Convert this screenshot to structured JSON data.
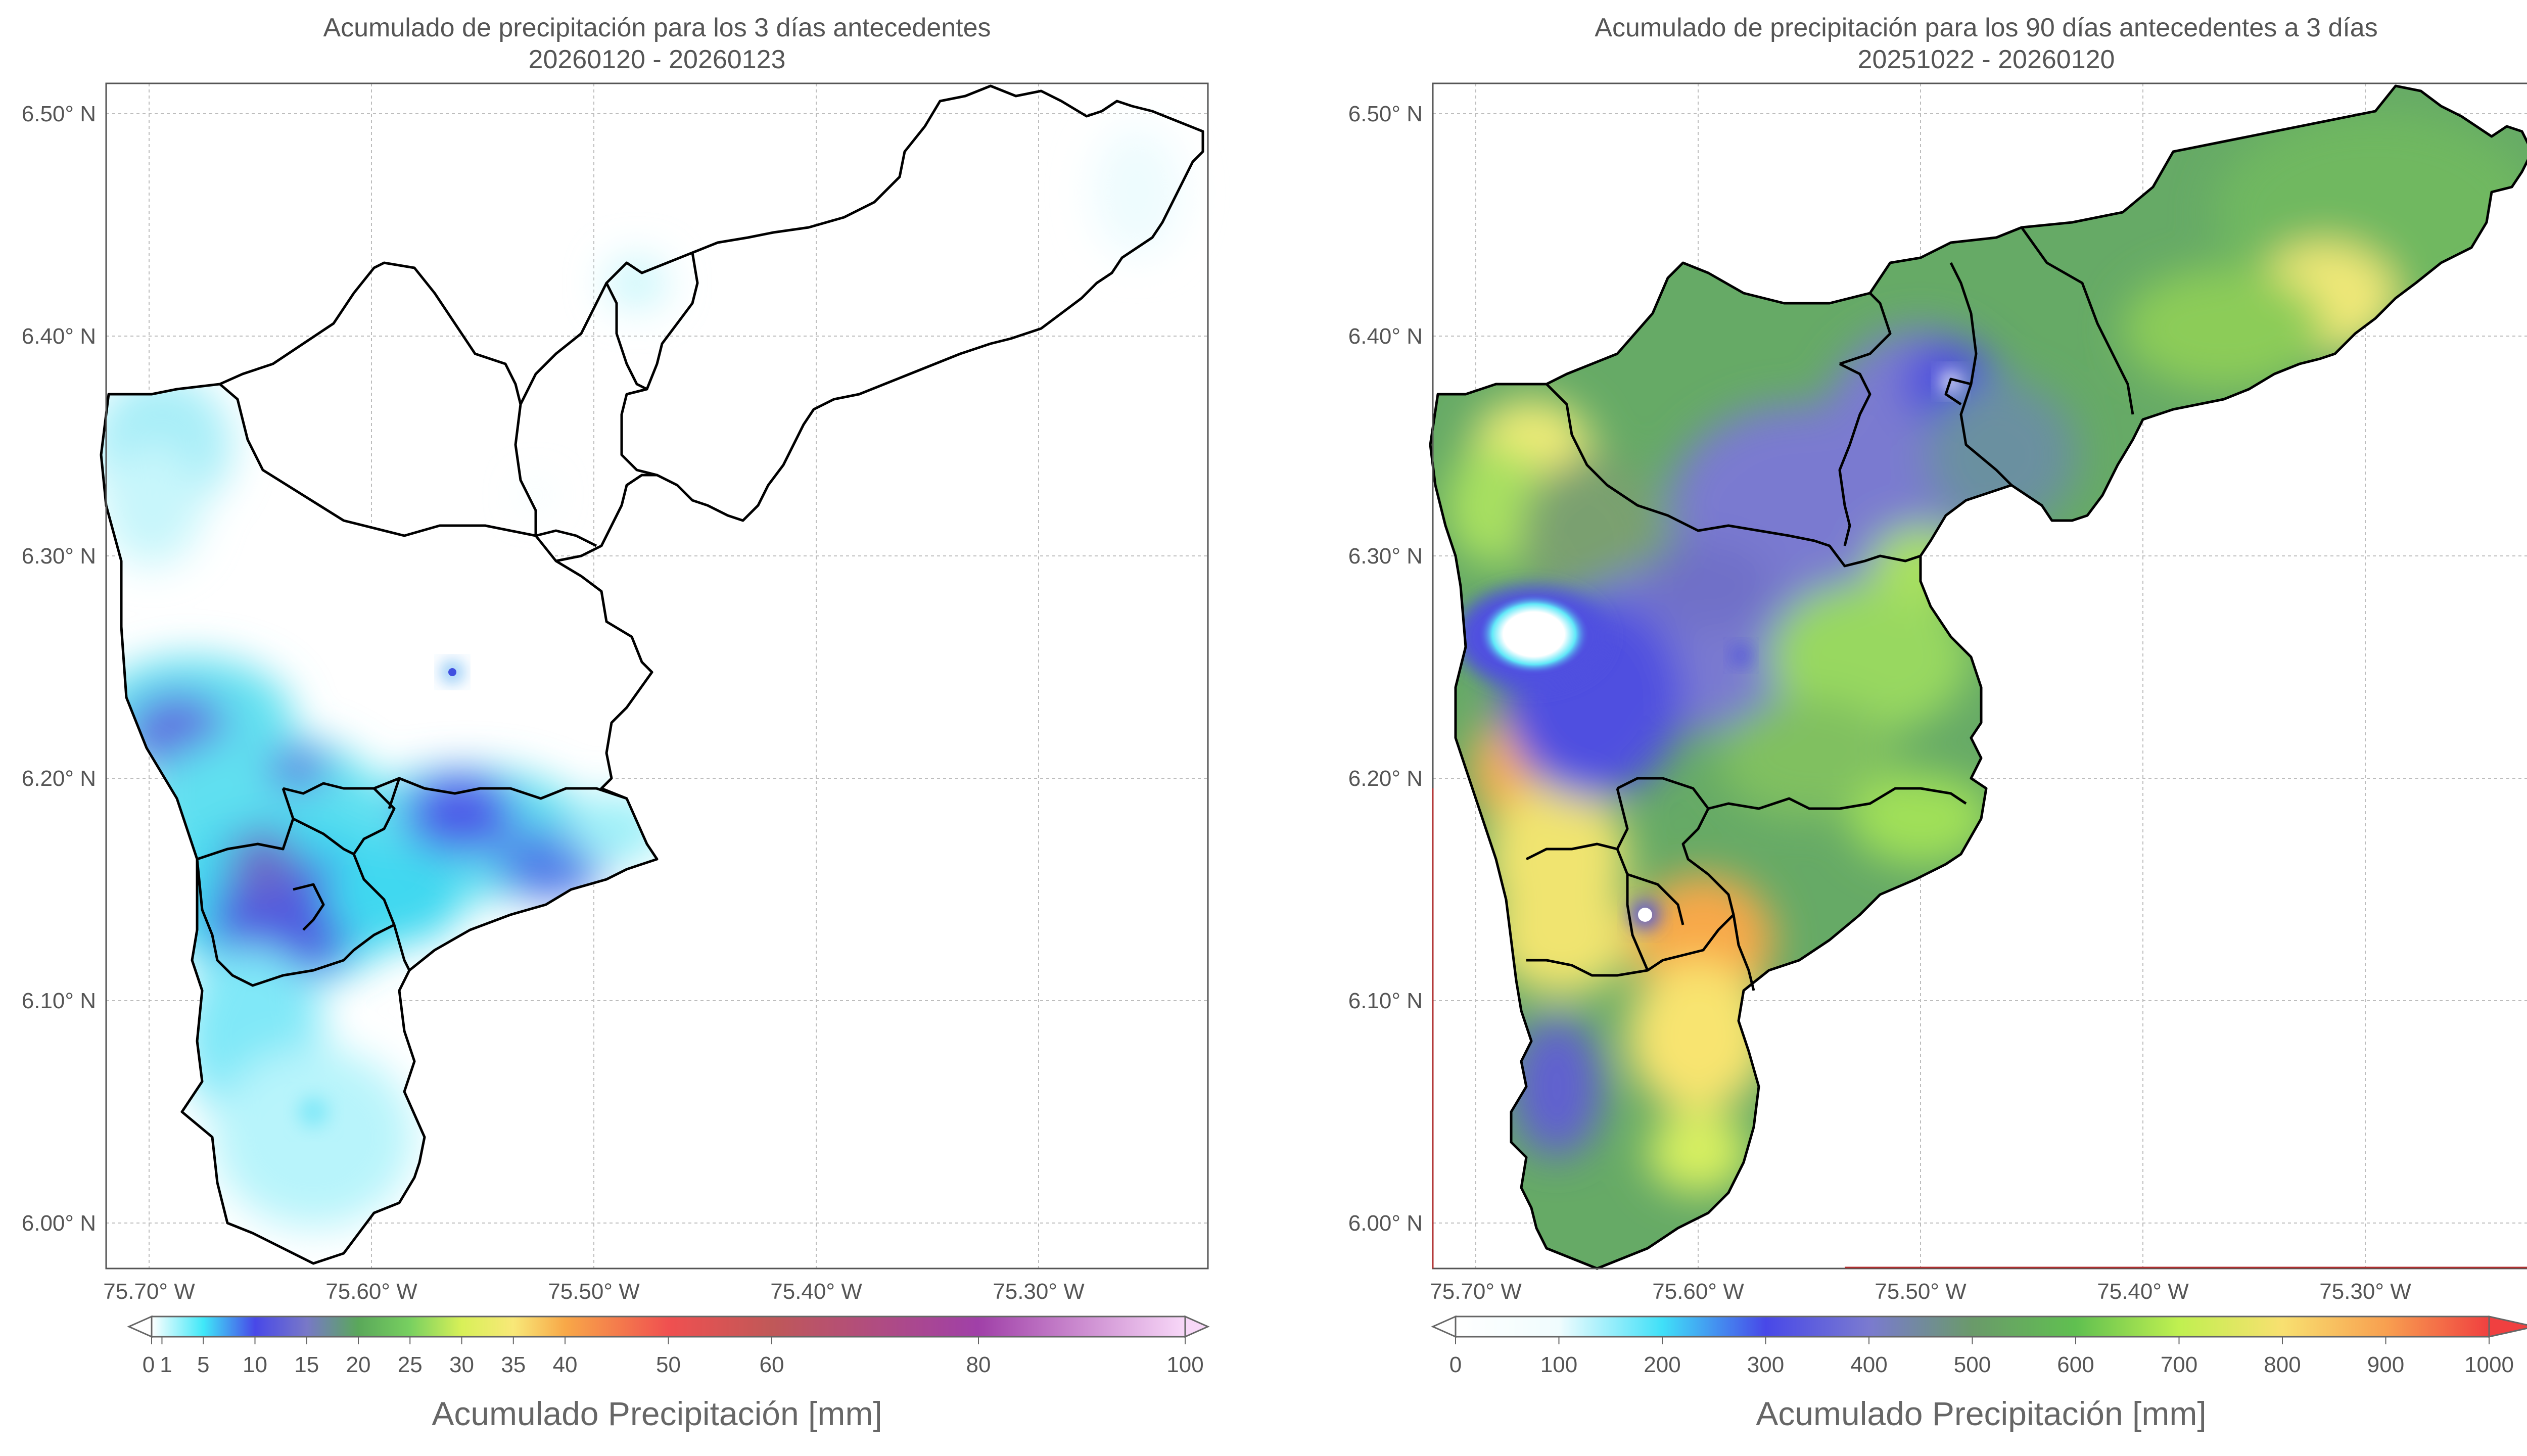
{
  "panels": [
    {
      "id": "left",
      "title_line1": "Acumulado de precipitación para los 3 días antecedentes",
      "title_line2": "20260120 - 20260123",
      "lat_ticks": [
        "6.50° N",
        "6.40° N",
        "6.30° N",
        "6.20° N",
        "6.10° N",
        "6.00° N"
      ],
      "lon_ticks": [
        "75.70° W",
        "75.60° W",
        "75.50° W",
        "75.40° W",
        "75.30° W"
      ],
      "colorbar": {
        "label": "Acumulado Precipitación [mm]",
        "tick_labels": [
          "0",
          "1",
          "5",
          "10",
          "15",
          "20",
          "25",
          "30",
          "35",
          "40",
          "50",
          "60",
          "80",
          "100"
        ],
        "min": 0,
        "max": 100,
        "colors": [
          "#ffffff",
          "#bff6fb",
          "#40e0f0",
          "#4b5ae8",
          "#7a7ad0",
          "#60a860",
          "#70c860",
          "#c8f050",
          "#f8f070",
          "#f8b040",
          "#f05a50",
          "#c84858",
          "#9a40a0",
          "#f0c8f0"
        ]
      }
    },
    {
      "id": "right",
      "title_line1": "Acumulado de precipitación para los 90 días antecedentes a 3 días",
      "title_line2": "20251022 - 20260120",
      "lat_ticks": [
        "6.50° N",
        "6.40° N",
        "6.30° N",
        "6.20° N",
        "6.10° N",
        "6.00° N"
      ],
      "lon_ticks": [
        "75.70° W",
        "75.60° W",
        "75.50° W",
        "75.40° W",
        "75.30° W"
      ],
      "colorbar": {
        "label": "Acumulado Precipitación [mm]",
        "tick_labels": [
          "0",
          "100",
          "200",
          "300",
          "400",
          "500",
          "600",
          "700",
          "800",
          "900",
          "1000"
        ],
        "min": 0,
        "max": 1000,
        "colors": [
          "#ffffff",
          "#e8fafe",
          "#40e0f8",
          "#4b4be8",
          "#7a7ad0",
          "#6a9a6a",
          "#60c050",
          "#b8f050",
          "#f8e870",
          "#f8b050",
          "#f04040"
        ]
      }
    }
  ]
}
